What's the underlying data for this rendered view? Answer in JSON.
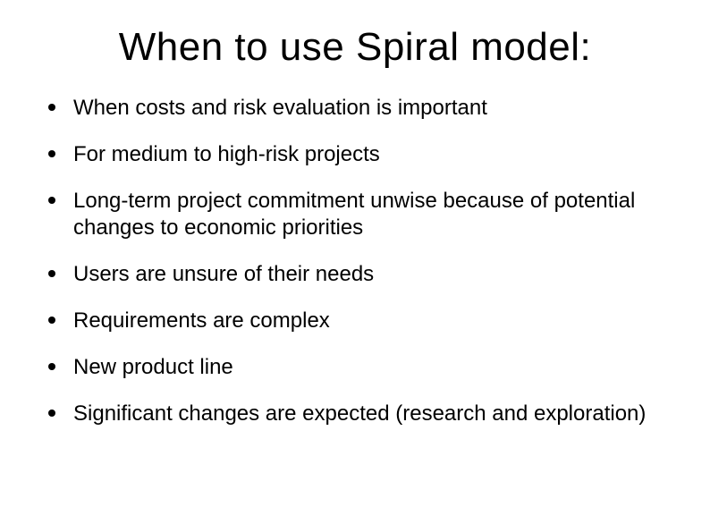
{
  "title": "When to use Spiral model:",
  "bullets": [
    "When costs and risk evaluation is important",
    "For medium to high-risk projects",
    "Long-term project commitment unwise because of potential changes to economic priorities",
    "Users are unsure of their needs",
    "Requirements are complex",
    "New product line",
    "Significant changes are expected (research and exploration)"
  ]
}
